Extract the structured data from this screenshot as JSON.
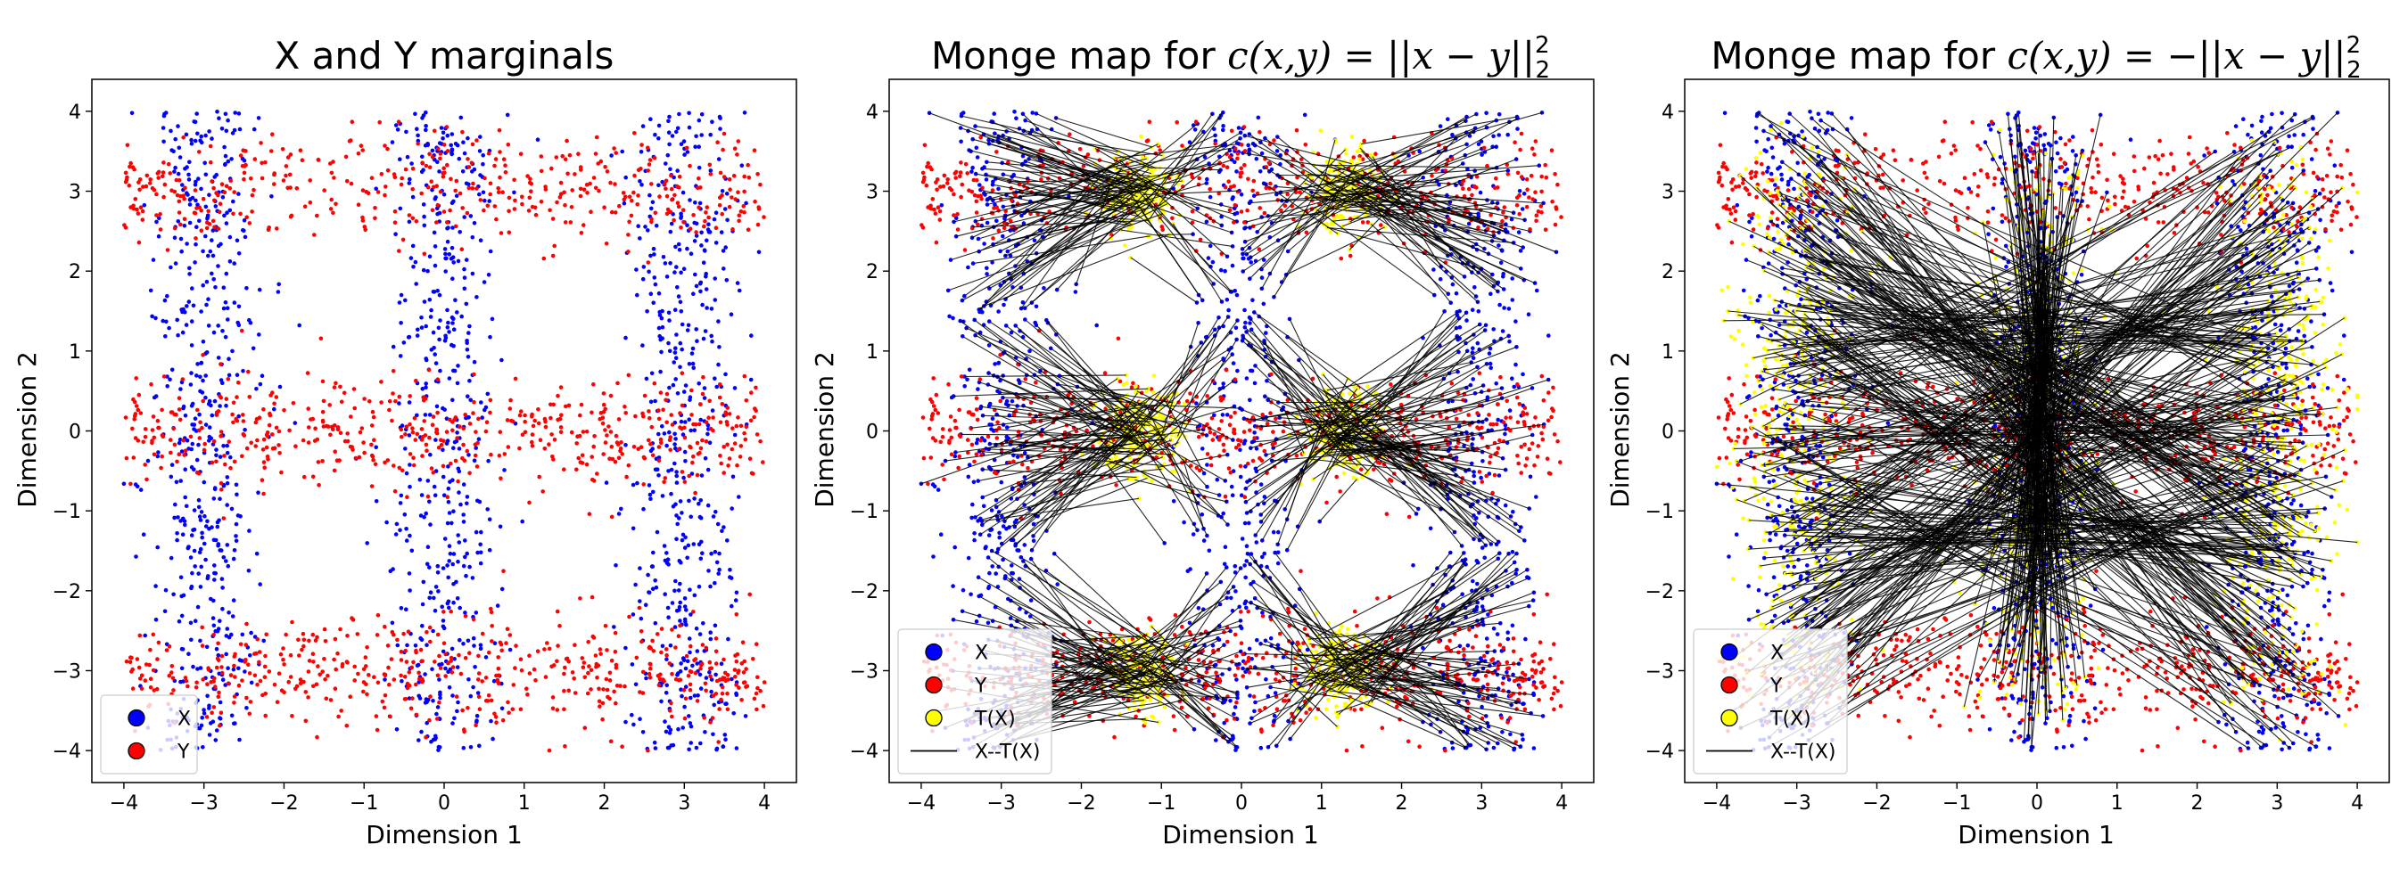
{
  "figure": {
    "colors": {
      "X": "#0000ff",
      "Y": "#ff0000",
      "TX": "#ffff00",
      "line": "#000000"
    }
  },
  "chart_data": [
    {
      "type": "scatter",
      "title": "X and Y marginals",
      "title_math": "",
      "xlabel": "Dimension 1",
      "ylabel": "Dimension 2",
      "xlim": [
        -4.4,
        4.4
      ],
      "ylim": [
        -4.4,
        4.4
      ],
      "xticks": [
        -4,
        -3,
        -2,
        -1,
        0,
        1,
        2,
        3,
        4
      ],
      "yticks": [
        -4,
        -3,
        -2,
        -1,
        0,
        1,
        2,
        3,
        4
      ],
      "xtick_labels": [
        "−4",
        "−3",
        "−2",
        "−1",
        "0",
        "1",
        "2",
        "3",
        "4"
      ],
      "ytick_labels": [
        "−4",
        "−3",
        "−2",
        "−1",
        "0",
        "1",
        "2",
        "3",
        "4"
      ],
      "legend": {
        "position": "lower-left",
        "entries": [
          "X",
          "Y"
        ]
      },
      "series": [
        {
          "name": "X",
          "distribution": "vertical bands",
          "centers_x": [
            -3,
            0,
            3
          ],
          "x_std": 0.35,
          "y_range": [
            -4,
            4
          ]
        },
        {
          "name": "Y",
          "distribution": "horizontal bands",
          "centers_y": [
            -3,
            0,
            3
          ],
          "y_std": 0.35,
          "x_range": [
            -4,
            4
          ]
        }
      ],
      "map": "none"
    },
    {
      "type": "scatter",
      "title": "Monge map for ",
      "title_math": "c(x,y) = ||x − y||",
      "title_sup": "2",
      "title_sub": "2",
      "xlabel": "Dimension 1",
      "ylabel": "Dimension 2",
      "xlim": [
        -4.4,
        4.4
      ],
      "ylim": [
        -4.4,
        4.4
      ],
      "xticks": [
        -4,
        -3,
        -2,
        -1,
        0,
        1,
        2,
        3,
        4
      ],
      "yticks": [
        -4,
        -3,
        -2,
        -1,
        0,
        1,
        2,
        3,
        4
      ],
      "xtick_labels": [
        "−4",
        "−3",
        "−2",
        "−1",
        "0",
        "1",
        "2",
        "3",
        "4"
      ],
      "ytick_labels": [
        "−4",
        "−3",
        "−2",
        "−1",
        "0",
        "1",
        "2",
        "3",
        "4"
      ],
      "legend": {
        "position": "lower-left",
        "entries": [
          "X",
          "Y",
          "T(X)",
          "X--T(X)"
        ]
      },
      "series": [
        {
          "name": "X",
          "distribution": "vertical bands",
          "centers_x": [
            -3,
            0,
            3
          ]
        },
        {
          "name": "Y",
          "distribution": "horizontal bands",
          "centers_y": [
            -3,
            0,
            3
          ]
        },
        {
          "name": "T(X)",
          "distribution": "map of X"
        }
      ],
      "map": "nearest",
      "attractors_x": [
        -1.3,
        1.3
      ],
      "attractors_y": [
        -3,
        0,
        3
      ]
    },
    {
      "type": "scatter",
      "title": "Monge map for ",
      "title_math": "c(x,y) = −||x − y||",
      "title_sup": "2",
      "title_sub": "2",
      "xlabel": "Dimension 1",
      "ylabel": "Dimension 2",
      "xlim": [
        -4.4,
        4.4
      ],
      "ylim": [
        -4.4,
        4.4
      ],
      "xticks": [
        -4,
        -3,
        -2,
        -1,
        0,
        1,
        2,
        3,
        4
      ],
      "yticks": [
        -4,
        -3,
        -2,
        -1,
        0,
        1,
        2,
        3,
        4
      ],
      "xtick_labels": [
        "−4",
        "−3",
        "−2",
        "−1",
        "0",
        "1",
        "2",
        "3",
        "4"
      ],
      "ytick_labels": [
        "−4",
        "−3",
        "−2",
        "−1",
        "0",
        "1",
        "2",
        "3",
        "4"
      ],
      "legend": {
        "position": "lower-left",
        "entries": [
          "X",
          "Y",
          "T(X)",
          "X--T(X)"
        ]
      },
      "series": [
        {
          "name": "X",
          "distribution": "vertical bands",
          "centers_x": [
            -3,
            0,
            3
          ]
        },
        {
          "name": "Y",
          "distribution": "horizontal bands",
          "centers_y": [
            -3,
            0,
            3
          ]
        },
        {
          "name": "T(X)",
          "distribution": "map of X"
        }
      ],
      "map": "reflect",
      "map_center": [
        0,
        0
      ]
    }
  ]
}
